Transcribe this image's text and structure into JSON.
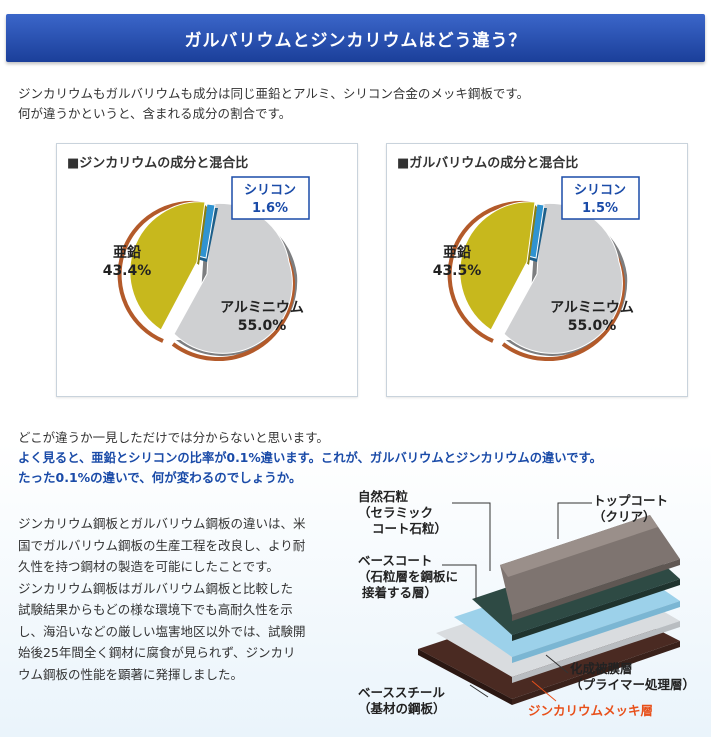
{
  "header": {
    "title": "ガルバリウムとジンカリウムはどう違う？"
  },
  "intro": [
    "ジンカリウムもガルバリウムも成分は同じ亜鉛とアルミ、シリコン合金のメッキ鋼板です。",
    "何が違うかというと、含まれる成分の割合です。"
  ],
  "chart_data": [
    {
      "type": "pie",
      "title": "■ジンカリウムの成分と混合比",
      "slices": [
        {
          "name": "亜鉛",
          "value": 43.4,
          "label": "43.4%",
          "color": "#c7b81d"
        },
        {
          "name": "シリコン",
          "value": 1.6,
          "label": "1.6%",
          "color": "#2f93d0"
        },
        {
          "name": "アルミニウム",
          "value": 55.0,
          "label": "55.0%",
          "color": "#cfd0d2"
        }
      ]
    },
    {
      "type": "pie",
      "title": "■ガルバリウムの成分と混合比",
      "slices": [
        {
          "name": "亜鉛",
          "value": 43.5,
          "label": "43.5%",
          "color": "#c7b81d"
        },
        {
          "name": "シリコン",
          "value": 1.5,
          "label": "1.5%",
          "color": "#2f93d0"
        },
        {
          "name": "アルミニウム",
          "value": 55.0,
          "label": "55.0%",
          "color": "#cfd0d2"
        }
      ]
    }
  ],
  "comparison": {
    "line1": "どこが違うか一見しただけでは分からないと思います。",
    "line2": "よく見ると、亜鉛とシリコンの比率が0.1%違います。これが、ガルバリウムとジンカリウムの違いです。",
    "line3": "たった0.1%の違いで、何が変わるのでしょうか。"
  },
  "body": [
    "ジンカリウム鋼板とガルバリウム鋼板の違いは、米",
    "国でガルバリウム鋼板の生産工程を改良し、より耐",
    "久性を持つ鋼材の製造を可能にしたことです。",
    "ジンカリウム鋼板はガルバリウム鋼板と比較した",
    "試験結果からもどの様な環境下でも高耐久性を示",
    "し、海沿いなどの厳しい塩害地区以外では、試験開",
    "始後25年間全く鋼材に腐食が見られず、ジンカリ",
    "ウム鋼板の性能を顕著に発揮しました。"
  ],
  "layers": {
    "stone": [
      "自然石粒",
      "（セラミック",
      "コート石粒）"
    ],
    "topcoat": [
      "トップコート",
      "（クリア）"
    ],
    "basecoat": [
      "ベースコート",
      "（石粒層を鋼板に",
      "接着する層）"
    ],
    "chemical": [
      "化成被膜層",
      "（プライマー処理層）"
    ],
    "steel": [
      "ベーススチール",
      "（基材の鋼板）"
    ],
    "plating": "ジンカリウムメッキ層"
  },
  "colors": {
    "banner": "#2b55b8",
    "highlight_text": "#1a4ba8",
    "plating_label": "#e8501a",
    "zinc": "#c7b81d",
    "silicon": "#2f93d0",
    "aluminum": "#cfd0d2"
  }
}
